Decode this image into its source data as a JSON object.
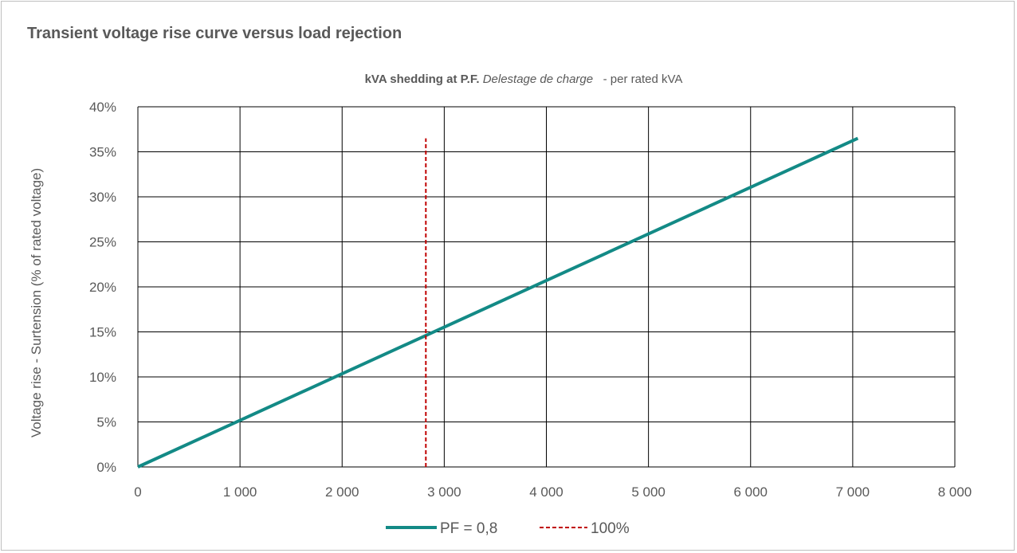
{
  "chart_data": {
    "type": "line",
    "title": "Transient voltage rise curve versus load rejection",
    "subtitle": {
      "bold": "kVA shedding at P.F.",
      "italic": "Delestage de charge",
      "normal": "  - per rated kVA"
    },
    "ylabel": "Voltage rise - Surtension  (% of rated voltage)",
    "xlabel": "",
    "xlim": [
      0,
      8000
    ],
    "ylim": [
      0,
      40
    ],
    "x_ticks": [
      0,
      1000,
      2000,
      3000,
      4000,
      5000,
      6000,
      7000,
      8000
    ],
    "x_tick_labels": [
      "0",
      "1 000",
      "2 000",
      "3 000",
      "4 000",
      "5 000",
      "6 000",
      "7 000",
      "8 000"
    ],
    "y_ticks": [
      0,
      5,
      10,
      15,
      20,
      25,
      30,
      35,
      40
    ],
    "y_tick_labels": [
      "0%",
      "5%",
      "10%",
      "15%",
      "20%",
      "25%",
      "30%",
      "35%",
      "40%"
    ],
    "grid": true,
    "legend_position": "bottom",
    "series": [
      {
        "name": "PF = 0,8",
        "style": "solid",
        "color": "#138a86",
        "points": [
          [
            0,
            0
          ],
          [
            7050,
            36.5
          ]
        ]
      },
      {
        "name": "100%",
        "style": "dashed",
        "color": "#c00000",
        "points": [
          [
            2820,
            0
          ],
          [
            2820,
            36.5
          ]
        ]
      }
    ]
  }
}
